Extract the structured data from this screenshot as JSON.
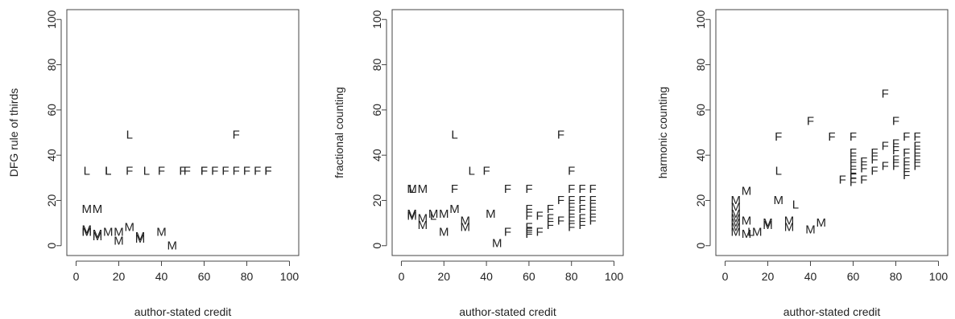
{
  "chart_data": [
    {
      "type": "scatter",
      "xlabel": "author-stated credit",
      "ylabel": "DFG rule of thirds",
      "xlim": [
        0,
        100
      ],
      "ylim": [
        0,
        100
      ],
      "xticks": [
        0,
        20,
        40,
        60,
        80,
        100
      ],
      "yticks": [
        0,
        20,
        40,
        60,
        80,
        100
      ],
      "points": [
        {
          "x": 25,
          "y": 49,
          "label": "L"
        },
        {
          "x": 75,
          "y": 49,
          "label": "F"
        },
        {
          "x": 5,
          "y": 33,
          "label": "L"
        },
        {
          "x": 15,
          "y": 33,
          "label": "L"
        },
        {
          "x": 15,
          "y": 33,
          "label": "L"
        },
        {
          "x": 25,
          "y": 33,
          "label": "F"
        },
        {
          "x": 33,
          "y": 33,
          "label": "L"
        },
        {
          "x": 40,
          "y": 33,
          "label": "F"
        },
        {
          "x": 50,
          "y": 33,
          "label": "F"
        },
        {
          "x": 52,
          "y": 33,
          "label": "F"
        },
        {
          "x": 60,
          "y": 33,
          "label": "F"
        },
        {
          "x": 60,
          "y": 33,
          "label": "F"
        },
        {
          "x": 65,
          "y": 33,
          "label": "F"
        },
        {
          "x": 70,
          "y": 33,
          "label": "F"
        },
        {
          "x": 75,
          "y": 33,
          "label": "F"
        },
        {
          "x": 80,
          "y": 33,
          "label": "F"
        },
        {
          "x": 85,
          "y": 33,
          "label": "F"
        },
        {
          "x": 90,
          "y": 33,
          "label": "F"
        },
        {
          "x": 90,
          "y": 33,
          "label": "F"
        },
        {
          "x": 5,
          "y": 16,
          "label": "M"
        },
        {
          "x": 10,
          "y": 16,
          "label": "M"
        },
        {
          "x": 5,
          "y": 6,
          "label": "M"
        },
        {
          "x": 5,
          "y": 6,
          "label": "M"
        },
        {
          "x": 5,
          "y": 7,
          "label": "M"
        },
        {
          "x": 10,
          "y": 5,
          "label": "M"
        },
        {
          "x": 10,
          "y": 4,
          "label": "M"
        },
        {
          "x": 15,
          "y": 6,
          "label": "M"
        },
        {
          "x": 20,
          "y": 6,
          "label": "M"
        },
        {
          "x": 20,
          "y": 2,
          "label": "M"
        },
        {
          "x": 25,
          "y": 8,
          "label": "M"
        },
        {
          "x": 30,
          "y": 4,
          "label": "M"
        },
        {
          "x": 30,
          "y": 3,
          "label": "M"
        },
        {
          "x": 40,
          "y": 6,
          "label": "M"
        },
        {
          "x": 45,
          "y": 0,
          "label": "M"
        }
      ]
    },
    {
      "type": "scatter",
      "xlabel": "author-stated credit",
      "ylabel": "fractional counting",
      "xlim": [
        0,
        100
      ],
      "ylim": [
        0,
        100
      ],
      "xticks": [
        0,
        20,
        40,
        60,
        80,
        100
      ],
      "yticks": [
        0,
        20,
        40,
        60,
        80,
        100
      ],
      "points": [
        {
          "x": 25,
          "y": 49,
          "label": "L"
        },
        {
          "x": 75,
          "y": 49,
          "label": "F"
        },
        {
          "x": 33,
          "y": 33,
          "label": "L"
        },
        {
          "x": 40,
          "y": 33,
          "label": "F"
        },
        {
          "x": 80,
          "y": 33,
          "label": "F"
        },
        {
          "x": 5,
          "y": 25,
          "label": "L"
        },
        {
          "x": 5,
          "y": 25,
          "label": "M"
        },
        {
          "x": 10,
          "y": 25,
          "label": "M"
        },
        {
          "x": 25,
          "y": 25,
          "label": "F"
        },
        {
          "x": 50,
          "y": 25,
          "label": "F"
        },
        {
          "x": 60,
          "y": 25,
          "label": "F"
        },
        {
          "x": 80,
          "y": 25,
          "label": "F"
        },
        {
          "x": 85,
          "y": 25,
          "label": "F"
        },
        {
          "x": 90,
          "y": 25,
          "label": "F"
        },
        {
          "x": 5,
          "y": 14,
          "label": "M"
        },
        {
          "x": 5,
          "y": 13,
          "label": "M"
        },
        {
          "x": 10,
          "y": 12,
          "label": "M"
        },
        {
          "x": 15,
          "y": 14,
          "label": "M"
        },
        {
          "x": 15,
          "y": 13,
          "label": "L"
        },
        {
          "x": 20,
          "y": 14,
          "label": "M"
        },
        {
          "x": 25,
          "y": 16,
          "label": "M"
        },
        {
          "x": 30,
          "y": 11,
          "label": "M"
        },
        {
          "x": 30,
          "y": 8,
          "label": "M"
        },
        {
          "x": 10,
          "y": 9,
          "label": "M"
        },
        {
          "x": 20,
          "y": 6,
          "label": "M"
        },
        {
          "x": 42,
          "y": 14,
          "label": "M"
        },
        {
          "x": 45,
          "y": 1,
          "label": "M"
        },
        {
          "x": 50,
          "y": 6,
          "label": "F"
        },
        {
          "x": 60,
          "y": 16,
          "label": "F"
        },
        {
          "x": 60,
          "y": 13,
          "label": "F"
        },
        {
          "x": 60,
          "y": 8,
          "label": "F"
        },
        {
          "x": 60,
          "y": 6,
          "label": "F"
        },
        {
          "x": 60,
          "y": 5,
          "label": "F"
        },
        {
          "x": 65,
          "y": 13,
          "label": "F"
        },
        {
          "x": 65,
          "y": 6,
          "label": "F"
        },
        {
          "x": 70,
          "y": 16,
          "label": "F"
        },
        {
          "x": 70,
          "y": 12,
          "label": "F"
        },
        {
          "x": 70,
          "y": 9,
          "label": "F"
        },
        {
          "x": 75,
          "y": 20,
          "label": "F"
        },
        {
          "x": 75,
          "y": 11,
          "label": "F"
        },
        {
          "x": 80,
          "y": 20,
          "label": "F"
        },
        {
          "x": 80,
          "y": 17,
          "label": "F"
        },
        {
          "x": 80,
          "y": 14,
          "label": "F"
        },
        {
          "x": 80,
          "y": 11,
          "label": "F"
        },
        {
          "x": 80,
          "y": 8,
          "label": "F"
        },
        {
          "x": 85,
          "y": 20,
          "label": "F"
        },
        {
          "x": 85,
          "y": 16,
          "label": "F"
        },
        {
          "x": 85,
          "y": 12,
          "label": "F"
        },
        {
          "x": 85,
          "y": 9,
          "label": "F"
        },
        {
          "x": 90,
          "y": 20,
          "label": "F"
        },
        {
          "x": 90,
          "y": 17,
          "label": "F"
        },
        {
          "x": 90,
          "y": 14,
          "label": "F"
        },
        {
          "x": 90,
          "y": 11,
          "label": "F"
        }
      ]
    },
    {
      "type": "scatter",
      "xlabel": "author-stated credit",
      "ylabel": "harmonic counting",
      "xlim": [
        0,
        100
      ],
      "ylim": [
        0,
        100
      ],
      "xticks": [
        0,
        20,
        40,
        60,
        80,
        100
      ],
      "yticks": [
        0,
        20,
        40,
        60,
        80,
        100
      ],
      "points": [
        {
          "x": 75,
          "y": 67,
          "label": "F"
        },
        {
          "x": 40,
          "y": 55,
          "label": "F"
        },
        {
          "x": 80,
          "y": 55,
          "label": "F"
        },
        {
          "x": 25,
          "y": 48,
          "label": "F"
        },
        {
          "x": 50,
          "y": 48,
          "label": "F"
        },
        {
          "x": 60,
          "y": 48,
          "label": "F"
        },
        {
          "x": 85,
          "y": 48,
          "label": "F"
        },
        {
          "x": 90,
          "y": 48,
          "label": "F"
        },
        {
          "x": 75,
          "y": 44,
          "label": "F"
        },
        {
          "x": 80,
          "y": 45,
          "label": "F"
        },
        {
          "x": 60,
          "y": 41,
          "label": "F"
        },
        {
          "x": 60,
          "y": 38,
          "label": "F"
        },
        {
          "x": 60,
          "y": 35,
          "label": "F"
        },
        {
          "x": 60,
          "y": 32,
          "label": "F"
        },
        {
          "x": 60,
          "y": 30,
          "label": "F"
        },
        {
          "x": 60,
          "y": 28,
          "label": "F"
        },
        {
          "x": 65,
          "y": 37,
          "label": "F"
        },
        {
          "x": 65,
          "y": 34,
          "label": "F"
        },
        {
          "x": 65,
          "y": 29,
          "label": "F"
        },
        {
          "x": 70,
          "y": 41,
          "label": "F"
        },
        {
          "x": 70,
          "y": 38,
          "label": "F"
        },
        {
          "x": 70,
          "y": 33,
          "label": "F"
        },
        {
          "x": 75,
          "y": 35,
          "label": "F"
        },
        {
          "x": 80,
          "y": 42,
          "label": "F"
        },
        {
          "x": 80,
          "y": 38,
          "label": "F"
        },
        {
          "x": 80,
          "y": 35,
          "label": "F"
        },
        {
          "x": 85,
          "y": 41,
          "label": "F"
        },
        {
          "x": 85,
          "y": 37,
          "label": "F"
        },
        {
          "x": 85,
          "y": 34,
          "label": "F"
        },
        {
          "x": 85,
          "y": 31,
          "label": "F"
        },
        {
          "x": 90,
          "y": 44,
          "label": "F"
        },
        {
          "x": 90,
          "y": 41,
          "label": "F"
        },
        {
          "x": 90,
          "y": 38,
          "label": "F"
        },
        {
          "x": 90,
          "y": 35,
          "label": "F"
        },
        {
          "x": 55,
          "y": 29,
          "label": "F"
        },
        {
          "x": 25,
          "y": 33,
          "label": "L"
        },
        {
          "x": 33,
          "y": 18,
          "label": "L"
        },
        {
          "x": 25,
          "y": 20,
          "label": "M"
        },
        {
          "x": 12,
          "y": 6,
          "label": "L"
        },
        {
          "x": 5,
          "y": 20,
          "label": "M"
        },
        {
          "x": 5,
          "y": 17,
          "label": "M"
        },
        {
          "x": 5,
          "y": 14,
          "label": "M"
        },
        {
          "x": 5,
          "y": 12,
          "label": "M"
        },
        {
          "x": 5,
          "y": 10,
          "label": "M"
        },
        {
          "x": 5,
          "y": 8,
          "label": "M"
        },
        {
          "x": 5,
          "y": 6,
          "label": "M"
        },
        {
          "x": 10,
          "y": 24,
          "label": "M"
        },
        {
          "x": 10,
          "y": 11,
          "label": "M"
        },
        {
          "x": 10,
          "y": 5,
          "label": "M"
        },
        {
          "x": 15,
          "y": 6,
          "label": "M"
        },
        {
          "x": 20,
          "y": 10,
          "label": "M"
        },
        {
          "x": 20,
          "y": 9,
          "label": "M"
        },
        {
          "x": 30,
          "y": 11,
          "label": "M"
        },
        {
          "x": 30,
          "y": 8,
          "label": "M"
        },
        {
          "x": 40,
          "y": 7,
          "label": "M"
        },
        {
          "x": 45,
          "y": 10,
          "label": "M"
        }
      ]
    }
  ]
}
